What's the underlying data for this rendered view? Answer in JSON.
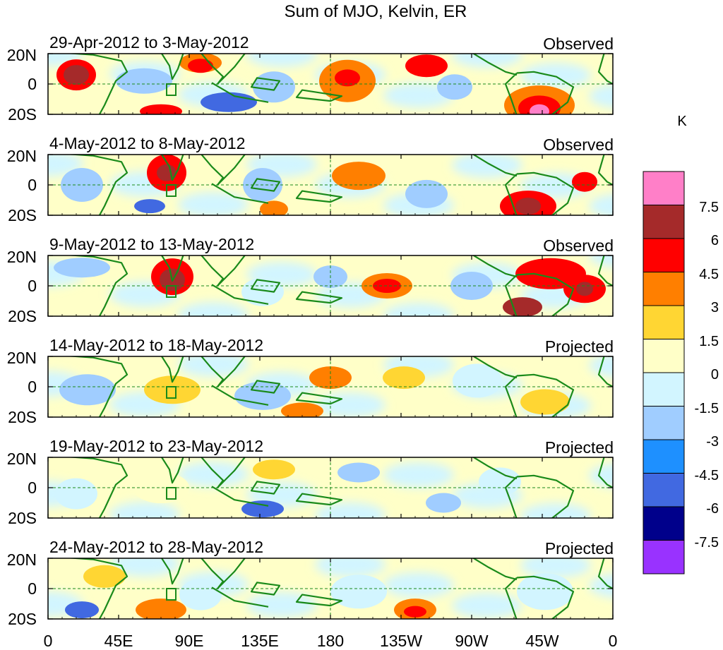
{
  "title": "Sum of MJO, Kelvin, ER",
  "panels": [
    {
      "period": "29-Apr-2012 to 3-May-2012",
      "status": "Observed"
    },
    {
      "period": "4-May-2012 to 8-May-2012",
      "status": "Observed"
    },
    {
      "period": "9-May-2012 to 13-May-2012",
      "status": "Observed"
    },
    {
      "period": "14-May-2012 to 18-May-2012",
      "status": "Projected"
    },
    {
      "period": "19-May-2012 to 23-May-2012",
      "status": "Projected"
    },
    {
      "period": "24-May-2012 to 28-May-2012",
      "status": "Projected"
    }
  ],
  "lat_labels": [
    "20N",
    "0",
    "20S"
  ],
  "lon_labels": [
    "0",
    "45E",
    "90E",
    "135E",
    "180",
    "135W",
    "90W",
    "45W",
    "0"
  ],
  "colorbar": {
    "unit": "K",
    "labels": [
      "7.5",
      "6",
      "4.5",
      "3",
      "1.5",
      "0",
      "-1.5",
      "-3",
      "-4.5",
      "-6",
      "-7.5"
    ],
    "colors_top_to_bottom": [
      "#ff7fc8",
      "#a52a2a",
      "#ff0000",
      "#ff7f00",
      "#ffd633",
      "#ffffc8",
      "#d2f5ff",
      "#a0cdff",
      "#1e90ff",
      "#4169e1",
      "#00008b",
      "#9932ff"
    ]
  },
  "coast_color": "#1a8a1a"
}
